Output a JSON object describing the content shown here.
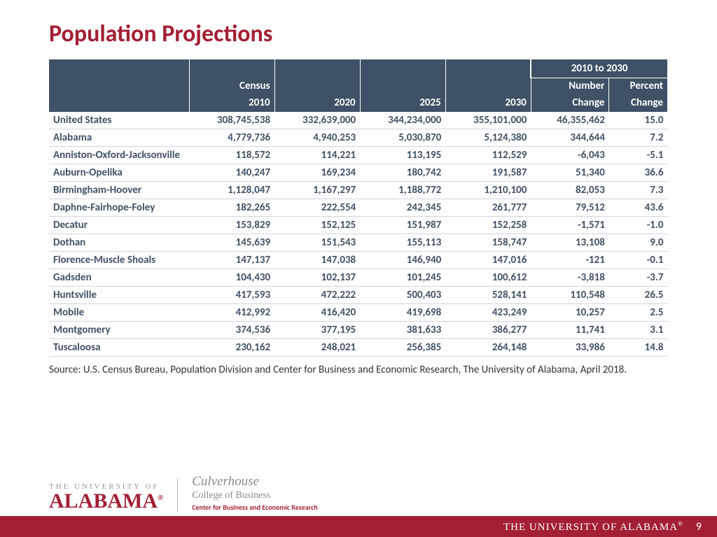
{
  "title": "Population Projections",
  "table": {
    "type": "table",
    "header_bg": "#3e5166",
    "header_fg": "#ffffff",
    "body_fg": "#3e5166",
    "border_color": "#d0d4da",
    "span_header": "2010 to 2030",
    "columns": [
      {
        "label_top": "",
        "label_bot": ""
      },
      {
        "label_top": "Census",
        "label_bot": "2010"
      },
      {
        "label_top": "",
        "label_bot": "2020"
      },
      {
        "label_top": "",
        "label_bot": "2025"
      },
      {
        "label_top": "",
        "label_bot": "2030"
      },
      {
        "label_top": "Number",
        "label_bot": "Change"
      },
      {
        "label_top": "Percent",
        "label_bot": "Change"
      }
    ],
    "rows": [
      [
        "United States",
        "308,745,538",
        "332,639,000",
        "344,234,000",
        "355,101,000",
        "46,355,462",
        "15.0"
      ],
      [
        "Alabama",
        "4,779,736",
        "4,940,253",
        "5,030,870",
        "5,124,380",
        "344,644",
        "7.2"
      ],
      [
        "Anniston-Oxford-Jacksonville",
        "118,572",
        "114,221",
        "113,195",
        "112,529",
        "-6,043",
        "-5.1"
      ],
      [
        "Auburn-Opelika",
        "140,247",
        "169,234",
        "180,742",
        "191,587",
        "51,340",
        "36.6"
      ],
      [
        "Birmingham-Hoover",
        "1,128,047",
        "1,167,297",
        "1,188,772",
        "1,210,100",
        "82,053",
        "7.3"
      ],
      [
        "Daphne-Fairhope-Foley",
        "182,265",
        "222,554",
        "242,345",
        "261,777",
        "79,512",
        "43.6"
      ],
      [
        "Decatur",
        "153,829",
        "152,125",
        "151,987",
        "152,258",
        "-1,571",
        "-1.0"
      ],
      [
        "Dothan",
        "145,639",
        "151,543",
        "155,113",
        "158,747",
        "13,108",
        "9.0"
      ],
      [
        "Florence-Muscle Shoals",
        "147,137",
        "147,038",
        "146,940",
        "147,016",
        "-121",
        "-0.1"
      ],
      [
        "Gadsden",
        "104,430",
        "102,137",
        "101,245",
        "100,612",
        "-3,818",
        "-3.7"
      ],
      [
        "Huntsville",
        "417,593",
        "472,222",
        "500,403",
        "528,141",
        "110,548",
        "26.5"
      ],
      [
        "Mobile",
        "412,992",
        "416,420",
        "419,698",
        "423,249",
        "10,257",
        "2.5"
      ],
      [
        "Montgomery",
        "374,536",
        "377,195",
        "381,633",
        "386,277",
        "11,741",
        "3.1"
      ],
      [
        "Tuscaloosa",
        "230,162",
        "248,021",
        "256,385",
        "264,148",
        "33,986",
        "14.8"
      ]
    ]
  },
  "source": "Source: U.S. Census Bureau, Population Division and Center for Business and Economic Research, The University of Alabama, April 2018.",
  "logos": {
    "ua_line1": "THE UNIVERSITY OF",
    "ua_line2": "ALABAMA",
    "culver_line1": "Culverhouse",
    "culver_line2": "College of Business",
    "culver_line3": "Center for Business and Economic Research"
  },
  "footer": {
    "text": "THE UNIVERSITY OF ALABAMA",
    "page": "9"
  },
  "colors": {
    "accent": "#a31f34",
    "header_bg": "#3e5166",
    "text": "#3e5166"
  }
}
